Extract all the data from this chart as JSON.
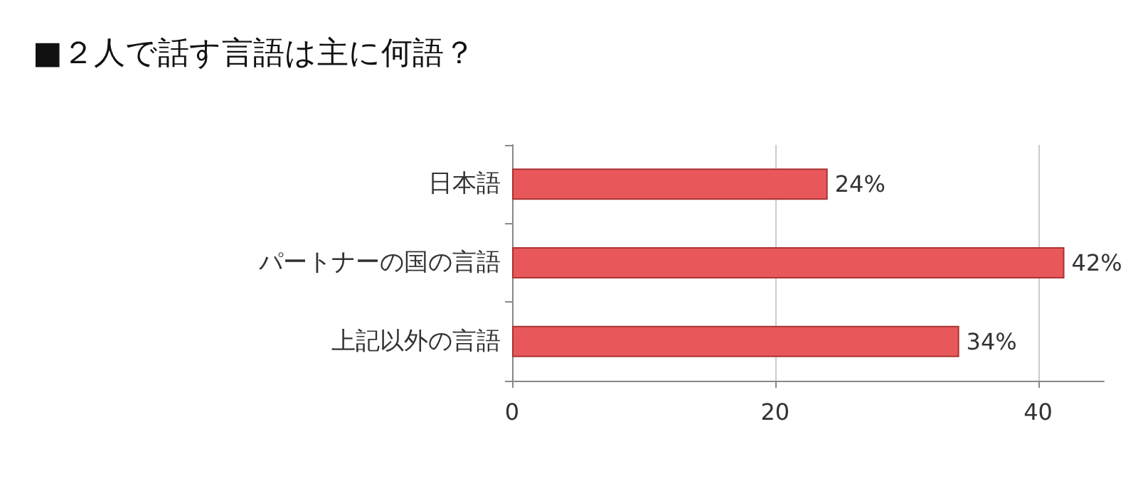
{
  "chart_data": {
    "type": "bar",
    "orientation": "horizontal",
    "title": "■２人で話す言語は主に何語？",
    "categories": [
      "日本語",
      "パートナーの国の言語",
      "上記以外の言語"
    ],
    "values": [
      24,
      42,
      34
    ],
    "value_labels": [
      "24%",
      "42%",
      "34%"
    ],
    "color": "#e8585a",
    "xlim": [
      0,
      45
    ],
    "xticks": [
      0,
      20,
      40
    ],
    "grid": "x"
  }
}
